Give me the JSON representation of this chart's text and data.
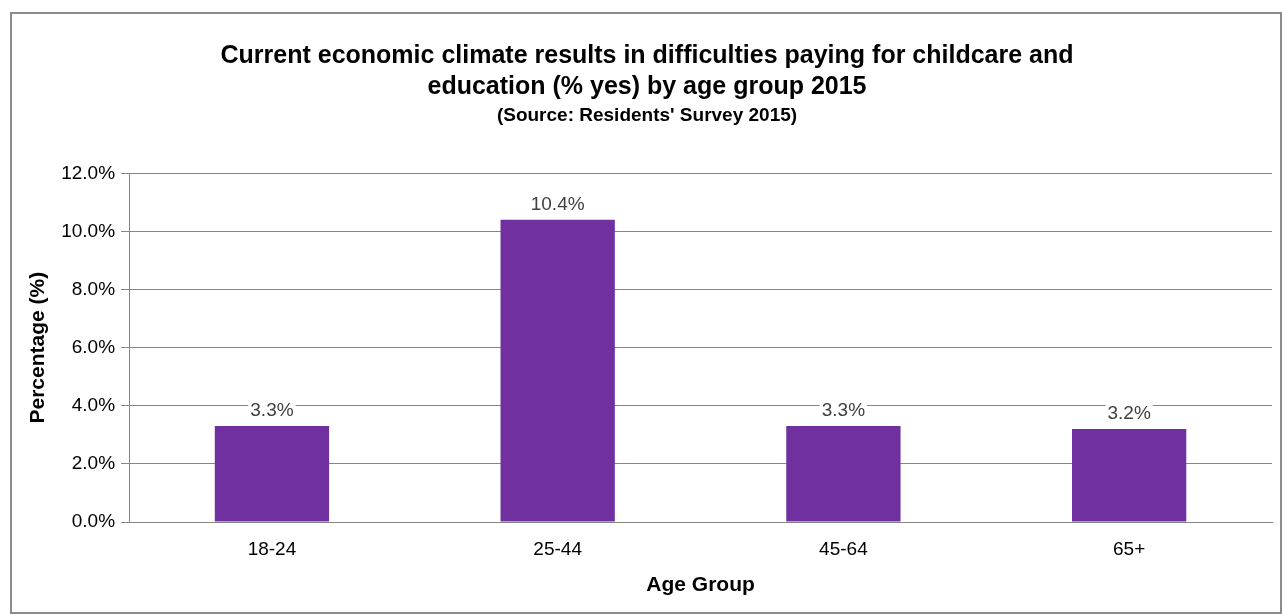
{
  "chart_data": {
    "type": "bar",
    "title": "Current economic climate results in difficulties paying for childcare and education (% yes) by age group 2015",
    "subtitle": "(Source: Residents' Survey 2015)",
    "xlabel": "Age Group",
    "ylabel": "Percentage (%)",
    "categories": [
      "18-24",
      "25-44",
      "45-64",
      "65+"
    ],
    "values": [
      3.3,
      10.4,
      3.3,
      3.2
    ],
    "value_labels": [
      "3.3%",
      "10.4%",
      "3.3%",
      "3.2%"
    ],
    "color": "#7030a0",
    "ylim": [
      0,
      12
    ],
    "yticks": [
      {
        "value": 0,
        "label": "0.0%"
      },
      {
        "value": 2,
        "label": "2.0%"
      },
      {
        "value": 4,
        "label": "4.0%"
      },
      {
        "value": 6,
        "label": "6.0%"
      },
      {
        "value": 8,
        "label": "8.0%"
      },
      {
        "value": 10,
        "label": "10.0%"
      },
      {
        "value": 12,
        "label": "12.0%"
      }
    ],
    "grid": "y",
    "legend": false
  }
}
